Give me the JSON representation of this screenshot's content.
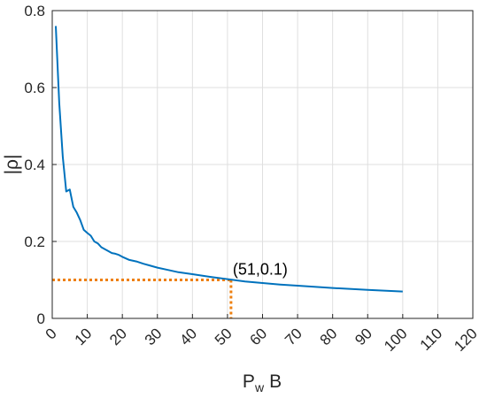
{
  "chart_data": {
    "type": "line",
    "xlabel_main": "P",
    "xlabel_sub": "w",
    "xlabel_tail": "B",
    "ylabel": "|ρ|",
    "xlim": [
      0,
      120
    ],
    "ylim": [
      0,
      0.8
    ],
    "xticks": [
      "0",
      "10",
      "20",
      "30",
      "40",
      "50",
      "60",
      "70",
      "80",
      "90",
      "100",
      "110",
      "120"
    ],
    "yticks": [
      "0",
      "0.2",
      "0.4",
      "0.6",
      "0.8"
    ],
    "grid": true,
    "series": [
      {
        "color": "#0072BD",
        "x": [
          1,
          2,
          3,
          4,
          5,
          6,
          7,
          8,
          9,
          10,
          11,
          12,
          13,
          14,
          15,
          16,
          17,
          18,
          19,
          20,
          22,
          24,
          26,
          28,
          30,
          33,
          36,
          40,
          45,
          50,
          55,
          60,
          65,
          70,
          80,
          90,
          100
        ],
        "y": [
          0.76,
          0.56,
          0.42,
          0.33,
          0.335,
          0.29,
          0.275,
          0.255,
          0.23,
          0.222,
          0.215,
          0.2,
          0.195,
          0.185,
          0.18,
          0.175,
          0.17,
          0.168,
          0.165,
          0.16,
          0.152,
          0.148,
          0.142,
          0.137,
          0.132,
          0.126,
          0.12,
          0.115,
          0.108,
          0.102,
          0.096,
          0.092,
          0.088,
          0.085,
          0.079,
          0.074,
          0.07
        ]
      }
    ],
    "annotation": {
      "label": "(51,0.1)",
      "x": 51,
      "y": 0.1,
      "color": "#EE7F0E"
    }
  }
}
